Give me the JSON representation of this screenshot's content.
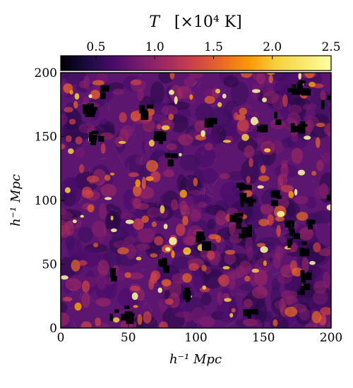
{
  "chart_data": {
    "type": "heatmap",
    "title": "T [×10⁴ K]",
    "colorbar": {
      "label_symbol": "T",
      "label_units": "[×10⁴ K]",
      "ticks": [
        "0.5",
        "1.0",
        "1.5",
        "2.0",
        "2.5"
      ],
      "tick_values": [
        0.5,
        1.0,
        1.5,
        2.0,
        2.5
      ],
      "range": [
        0.2,
        2.5
      ],
      "colormap": "inferno",
      "position": "top"
    },
    "xlabel": "h⁻¹ Mpc",
    "ylabel": "h⁻¹ Mpc",
    "xlim": [
      0,
      200
    ],
    "ylim": [
      0,
      200
    ],
    "xticks": [
      "0",
      "50",
      "100",
      "150",
      "200"
    ],
    "yticks": [
      "0",
      "50",
      "100",
      "150",
      "200"
    ],
    "xtick_values": [
      0,
      50,
      100,
      150,
      200
    ],
    "ytick_values": [
      0,
      50,
      100,
      150,
      200
    ],
    "grid": false
  }
}
